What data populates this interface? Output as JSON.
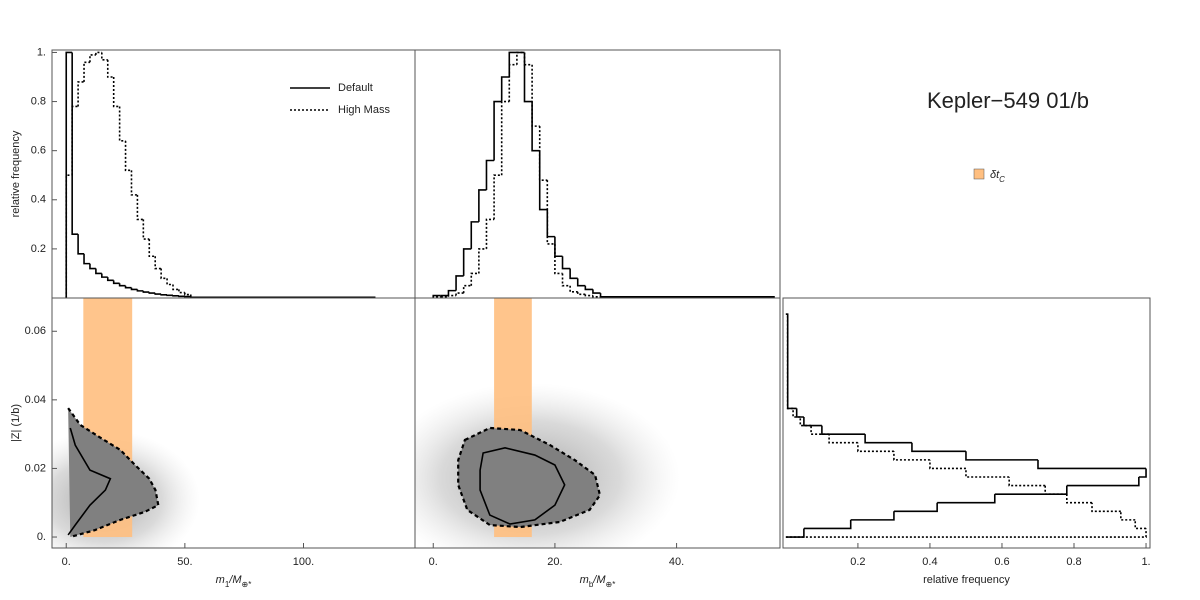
{
  "header": {
    "title": "Kepler−549 01/b",
    "band_label": [
      "δt",
      "C"
    ],
    "band_color": "#ffbf80"
  },
  "chart_data": [
    {
      "type": "histogram",
      "orientation": "vertical",
      "ylabel": "relative frequency",
      "bins": [
        0,
        2.5,
        5,
        7.5,
        10,
        12.5,
        15,
        17.5,
        20,
        22.5,
        25,
        27.5,
        30,
        32.5,
        35,
        37.5,
        40,
        42.5,
        45,
        47.5,
        50,
        52.5,
        130
      ],
      "series": [
        {
          "name": "Default",
          "color": "#000000",
          "dashed": false,
          "values": [
            1.0,
            0.26,
            0.18,
            0.14,
            0.12,
            0.1,
            0.085,
            0.072,
            0.06,
            0.05,
            0.042,
            0.035,
            0.029,
            0.024,
            0.02,
            0.016,
            0.013,
            0.011,
            0.009,
            0.007,
            0.006,
            0.003
          ]
        },
        {
          "name": "High Mass",
          "color": "#000000",
          "dashed": true,
          "values": [
            0.5,
            0.78,
            0.88,
            0.96,
            0.99,
            1.0,
            0.97,
            0.9,
            0.78,
            0.64,
            0.52,
            0.42,
            0.32,
            0.24,
            0.17,
            0.12,
            0.08,
            0.055,
            0.035,
            0.022,
            0.014,
            0.003
          ]
        }
      ],
      "legend": "upper right",
      "xlim": [
        -6,
        147
      ],
      "ylim": [
        0,
        1.01
      ],
      "yticks": [
        0.2,
        0.4,
        0.6,
        0.8,
        {
          "value": 1,
          "label": "1."
        }
      ]
    },
    {
      "type": "histogram",
      "orientation": "vertical",
      "bins": [
        0,
        1.25,
        2.5,
        3.75,
        5,
        6.25,
        7.5,
        8.75,
        10,
        11.25,
        12.5,
        13.75,
        15,
        16.25,
        17.5,
        18.75,
        20,
        21.25,
        22.5,
        23.75,
        25,
        26.25,
        27.5,
        56
      ],
      "series": [
        {
          "color": "#000000",
          "dashed": false,
          "values": [
            0.01,
            0.01,
            0.03,
            0.09,
            0.2,
            0.31,
            0.44,
            0.56,
            0.8,
            0.9,
            1.0,
            1.0,
            0.8,
            0.6,
            0.36,
            0.25,
            0.17,
            0.12,
            0.08,
            0.05,
            0.035,
            0.02,
            0.005
          ]
        },
        {
          "color": "#000000",
          "dashed": true,
          "values": [
            0.005,
            0.005,
            0.01,
            0.02,
            0.05,
            0.1,
            0.2,
            0.32,
            0.5,
            0.8,
            0.95,
            1.0,
            0.95,
            0.7,
            0.48,
            0.22,
            0.1,
            0.05,
            0.025,
            0.015,
            0.01,
            0.005,
            0.003
          ]
        }
      ],
      "xlim": [
        -3,
        57
      ],
      "ylim": [
        0,
        1.01
      ]
    },
    {
      "type": "contour",
      "xlabel": [
        "m",
        "1",
        "/M",
        "⊕*"
      ],
      "ylabel": "|Z| (1/b)",
      "band": [
        7.2,
        27.8
      ],
      "series": [
        {
          "color": "#000000",
          "dashed": true,
          "fill": "#808080",
          "x": [
            0.8,
            5.9,
            14.3,
            22.8,
            29,
            35,
            37.6,
            38.8,
            33,
            22.8,
            12,
            1.7
          ],
          "y": [
            0.0376,
            0.0327,
            0.029,
            0.0254,
            0.021,
            0.017,
            0.0137,
            0.0093,
            0.0073,
            0.005,
            0.002,
            0
          ]
        },
        {
          "color": "#000000",
          "dashed": false,
          "x": [
            1.7,
            3.8,
            10,
            18.6,
            16.5,
            10,
            3.8,
            0.8
          ],
          "y": [
            0.0318,
            0.0268,
            0.0195,
            0.017,
            0.0137,
            0.0093,
            0.0035,
            0.0006
          ]
        }
      ],
      "xlim": [
        -6,
        147
      ],
      "ylim": [
        -0.0032,
        0.0697
      ],
      "xticks": [
        {
          "value": 0,
          "label": "0."
        },
        {
          "value": 50,
          "label": "50."
        },
        {
          "value": 100,
          "label": "100."
        }
      ],
      "yticks": [
        {
          "value": 0,
          "label": "0."
        },
        0.02,
        0.04,
        0.06
      ]
    },
    {
      "type": "contour",
      "xlabel": [
        "m",
        "b",
        "/M",
        "⊕*"
      ],
      "band": [
        10.0,
        16.2
      ],
      "series": [
        {
          "color": "#000000",
          "dashed": true,
          "fill": "#808080",
          "closed": true,
          "x": [
            5.2,
            9.3,
            14.3,
            19.2,
            23.3,
            26.6,
            27.4,
            25.7,
            20.8,
            14.3,
            9.3,
            5.6,
            4.1,
            4.1
          ],
          "y": [
            0.0283,
            0.0318,
            0.0312,
            0.0268,
            0.0224,
            0.0181,
            0.0122,
            0.0079,
            0.0044,
            0.0029,
            0.0035,
            0.0079,
            0.0152,
            0.0224
          ]
        },
        {
          "color": "#000000",
          "dashed": false,
          "closed": true,
          "x": [
            8.2,
            11.8,
            16.7,
            20,
            21.6,
            20,
            16.7,
            12.6,
            9.3,
            7.7,
            7.7
          ],
          "y": [
            0.0245,
            0.026,
            0.0239,
            0.021,
            0.0152,
            0.0093,
            0.005,
            0.0038,
            0.0064,
            0.0137,
            0.0195
          ]
        }
      ],
      "xlim": [
        -3,
        57
      ],
      "ylim": [
        -0.0032,
        0.0697
      ],
      "xticks": [
        {
          "value": 0,
          "label": "0."
        },
        {
          "value": 20,
          "label": "20."
        },
        {
          "value": 40,
          "label": "40."
        }
      ]
    },
    {
      "type": "histogram",
      "orientation": "horizontal",
      "xlabel": "relative frequency",
      "bins": [
        0,
        0.0025,
        0.005,
        0.0075,
        0.01,
        0.0125,
        0.015,
        0.0175,
        0.02,
        0.0225,
        0.025,
        0.0275,
        0.03,
        0.0325,
        0.035,
        0.0375,
        0.065
      ],
      "series": [
        {
          "color": "#000000",
          "dashed": false,
          "values": [
            0.05,
            0.18,
            0.3,
            0.42,
            0.58,
            0.78,
            0.98,
            1.0,
            0.7,
            0.5,
            0.35,
            0.22,
            0.1,
            0.05,
            0.03,
            0.005
          ]
        },
        {
          "color": "#000000",
          "dashed": true,
          "values": [
            1.0,
            0.97,
            0.93,
            0.85,
            0.78,
            0.72,
            0.62,
            0.5,
            0.4,
            0.3,
            0.2,
            0.12,
            0.07,
            0.04,
            0.02,
            0.005
          ]
        }
      ],
      "xlim": [
        -0.008,
        1.011
      ],
      "ylim": [
        -0.0032,
        0.0697
      ],
      "xticks": [
        0.2,
        0.4,
        0.6,
        0.8,
        {
          "value": 1,
          "label": "1."
        }
      ]
    }
  ]
}
